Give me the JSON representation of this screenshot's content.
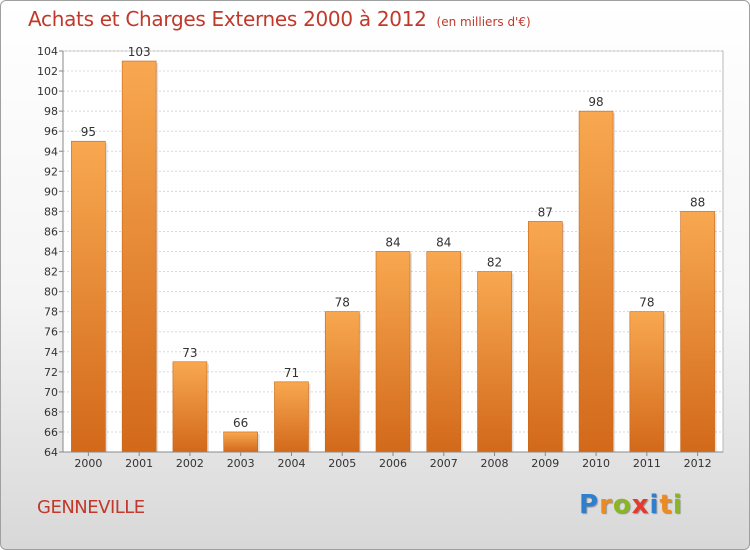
{
  "header": {
    "title": "Achats et Charges Externes 2000 à 2012",
    "unit": "(en milliers d'€)"
  },
  "footer": {
    "city": "GENNEVILLE",
    "logo": {
      "letters": [
        "P",
        "r",
        "o",
        "x",
        "i",
        "t",
        "i"
      ],
      "colors": [
        "#2f7fd0",
        "#f08a1c",
        "#8ab623",
        "#e23a2e",
        "#2f7fd0",
        "#f08a1c",
        "#8ab623"
      ]
    }
  },
  "chart_data": {
    "type": "bar",
    "title": "Achats et Charges Externes 2000 à 2012",
    "subtitle": "(en milliers d'€)",
    "categories": [
      "2000",
      "2001",
      "2002",
      "2003",
      "2004",
      "2005",
      "2006",
      "2007",
      "2008",
      "2009",
      "2010",
      "2011",
      "2012"
    ],
    "values": [
      95,
      103,
      73,
      66,
      71,
      78,
      84,
      84,
      82,
      87,
      98,
      78,
      88
    ],
    "ylim": [
      64,
      104
    ],
    "ytick_step": 2,
    "grid": true,
    "colors": {
      "bar_light": "#f8a850",
      "bar_dark": "#d2691a",
      "title": "#c0392b",
      "text": "#333333"
    }
  }
}
